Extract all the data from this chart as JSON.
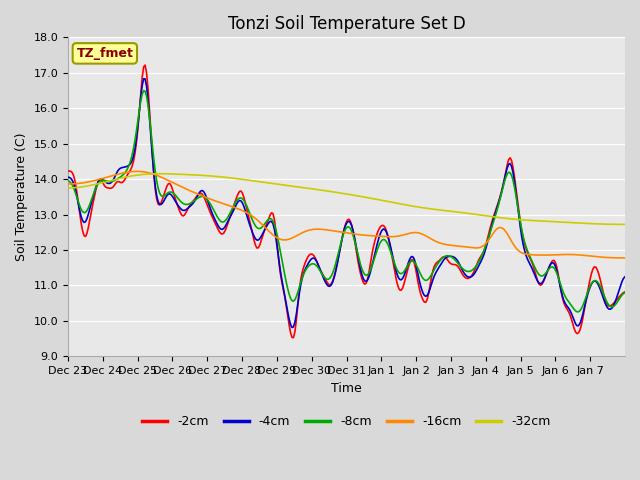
{
  "title": "Tonzi Soil Temperature Set D",
  "xlabel": "Time",
  "ylabel": "Soil Temperature (C)",
  "ylim": [
    9.0,
    18.0
  ],
  "yticks": [
    9.0,
    10.0,
    11.0,
    12.0,
    13.0,
    14.0,
    15.0,
    16.0,
    17.0,
    18.0
  ],
  "xtick_labels": [
    "Dec 23",
    "Dec 24",
    "Dec 25",
    "Dec 26",
    "Dec 27",
    "Dec 28",
    "Dec 29",
    "Dec 30",
    "Dec 31",
    "Jan 1",
    "Jan 2",
    "Jan 3",
    "Jan 4",
    "Jan 5",
    "Jan 6",
    "Jan 7"
  ],
  "legend_labels": [
    "-2cm",
    "-4cm",
    "-8cm",
    "-16cm",
    "-32cm"
  ],
  "line_colors": [
    "#ff0000",
    "#0000cc",
    "#00aa00",
    "#ff8800",
    "#cccc00"
  ],
  "line_width": 1.2,
  "label_box_text": "TZ_fmet",
  "label_box_facecolor": "#ffff99",
  "label_box_edgecolor": "#999900",
  "label_text_color": "#880000",
  "fig_facecolor": "#d9d9d9",
  "ax_facecolor": "#e8e8e8",
  "grid_color": "#ffffff",
  "title_fontsize": 12,
  "ylabel_fontsize": 9,
  "xlabel_fontsize": 9,
  "tick_fontsize": 8,
  "legend_fontsize": 9
}
